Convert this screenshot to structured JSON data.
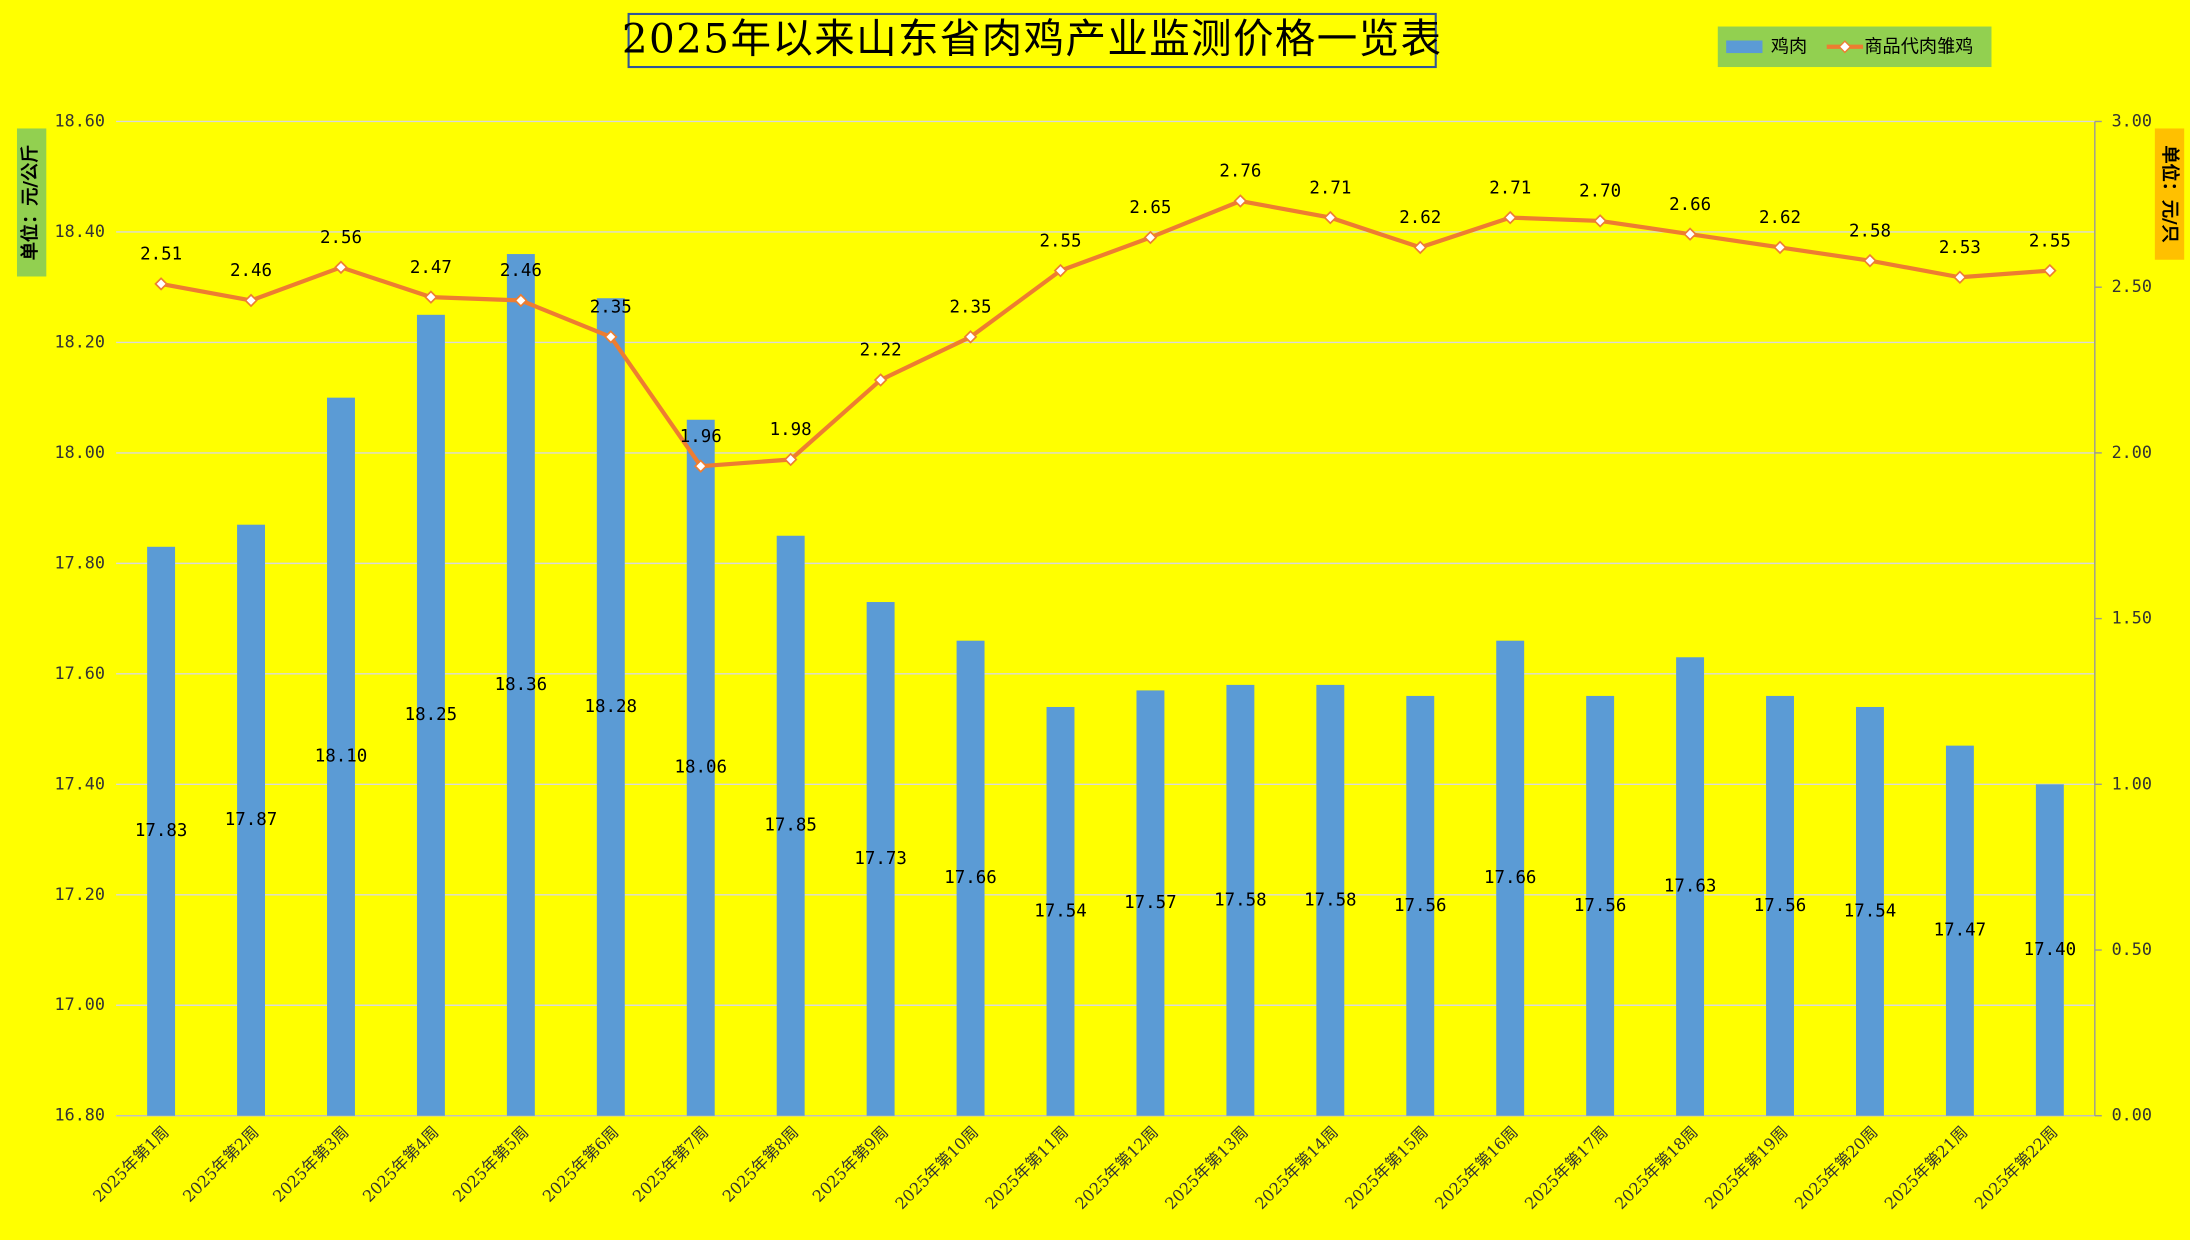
{
  "chart_data": {
    "type": "bar",
    "title": "2025年以来山东省肉鸡产业监测价格一览表",
    "y_label": "单位：元/公斤",
    "y2_label": "单位：元/只",
    "categories": [
      "2025年第1周",
      "2025年第2周",
      "2025年第3周",
      "2025年第4周",
      "2025年第5周",
      "2025年第6周",
      "2025年第7周",
      "2025年第8周",
      "2025年第9周",
      "2025年第10周",
      "2025年第11周",
      "2025年第12周",
      "2025年第13周",
      "2025年第14周",
      "2025年第15周",
      "2025年第16周",
      "2025年第17周",
      "2025年第18周",
      "2025年第19周",
      "2025年第20周",
      "2025年第21周",
      "2025年第22周"
    ],
    "series": [
      {
        "name": "鸡肉",
        "type": "bar",
        "color": "#5b9bd5",
        "values": [
          17.83,
          17.87,
          18.1,
          18.25,
          18.36,
          18.28,
          18.06,
          17.85,
          17.73,
          17.66,
          17.54,
          17.57,
          17.58,
          17.58,
          17.56,
          17.66,
          17.56,
          17.63,
          17.56,
          17.54,
          17.47,
          17.4
        ],
        "value_labels": [
          "17.83",
          "17.87",
          "18.10",
          "18.25",
          "18.36",
          "18.28",
          "18.06",
          "17.85",
          "17.73",
          "17.66",
          "17.54",
          "17.57",
          "17.58",
          "17.58",
          "17.56",
          "17.66",
          "17.56",
          "17.63",
          "17.56",
          "17.54",
          "17.47",
          "17.40"
        ]
      },
      {
        "name": "商品代肉雏鸡",
        "type": "line",
        "axis": "y2",
        "color": "#ed7d31",
        "values": [
          2.51,
          2.46,
          2.56,
          2.47,
          2.46,
          2.35,
          1.96,
          1.98,
          2.22,
          2.35,
          2.55,
          2.65,
          2.76,
          2.71,
          2.62,
          2.71,
          2.7,
          2.66,
          2.62,
          2.58,
          2.53,
          2.55
        ],
        "value_labels": [
          "2.51",
          "2.46",
          "2.56",
          "2.47",
          "2.46",
          "2.35",
          "1.96",
          "1.98",
          "2.22",
          "2.35",
          "2.55",
          "2.65",
          "2.76",
          "2.71",
          "2.62",
          "2.71",
          "2.70",
          "2.66",
          "2.62",
          "2.58",
          "2.53",
          "2.55"
        ]
      }
    ],
    "ylim": [
      16.8,
      18.6
    ],
    "yticks": [
      {
        "value": 16.8,
        "label": "16.80"
      },
      {
        "value": 17,
        "label": "17.00"
      },
      {
        "value": 17.2,
        "label": "17.20"
      },
      {
        "value": 17.4,
        "label": "17.40"
      },
      {
        "value": 17.6,
        "label": "17.60"
      },
      {
        "value": 17.8,
        "label": "17.80"
      },
      {
        "value": 18,
        "label": "18.00"
      },
      {
        "value": 18.2,
        "label": "18.20"
      },
      {
        "value": 18.4,
        "label": "18.40"
      },
      {
        "value": 18.6,
        "label": "18.60"
      }
    ],
    "y2lim": [
      0,
      3
    ],
    "y2ticks": [
      {
        "value": 0,
        "label": "0.00"
      },
      {
        "value": 0.5,
        "label": "0.50"
      },
      {
        "value": 1,
        "label": "1.00"
      },
      {
        "value": 1.5,
        "label": "1.50"
      },
      {
        "value": 2,
        "label": "2.00"
      },
      {
        "value": 2.5,
        "label": "2.50"
      },
      {
        "value": 3,
        "label": "3.00"
      }
    ],
    "grid": true,
    "legend": "top-right"
  }
}
